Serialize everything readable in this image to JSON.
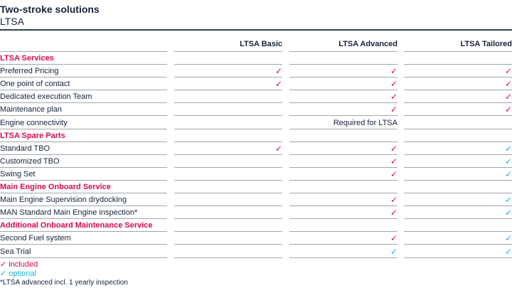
{
  "title": "Two-stroke solutions",
  "subtitle": "LTSA",
  "columns": [
    "LTSA Basic",
    "LTSA Advanced",
    "LTSA Tailored"
  ],
  "marks": {
    "included": "✓",
    "optional": "✓"
  },
  "rows": [
    {
      "type": "section",
      "label": "LTSA Services"
    },
    {
      "type": "item",
      "label": "Preferred Pricing",
      "cells": [
        "included",
        "included",
        "included"
      ]
    },
    {
      "type": "item",
      "label": "One point of contact",
      "cells": [
        "included",
        "included",
        "included"
      ]
    },
    {
      "type": "item",
      "label": "Dedicated execution Team",
      "cells": [
        "",
        "included",
        "included"
      ]
    },
    {
      "type": "item",
      "label": "Maintenance plan",
      "cells": [
        "",
        "included",
        "included"
      ]
    },
    {
      "type": "item",
      "label": "Engine connectivity",
      "cells": [
        "",
        "text:Required for LTSA",
        ""
      ]
    },
    {
      "type": "section",
      "label": "LTSA Spare Parts"
    },
    {
      "type": "item",
      "label": "Standard TBO",
      "cells": [
        "included",
        "included",
        "optional"
      ]
    },
    {
      "type": "item",
      "label": "Customized TBO",
      "cells": [
        "",
        "included",
        "optional"
      ]
    },
    {
      "type": "item",
      "label": "Swing Set",
      "cells": [
        "",
        "included",
        "optional"
      ]
    },
    {
      "type": "section",
      "label": "Main Engine Onboard Service"
    },
    {
      "type": "item",
      "label": "Main Engine Supervision drydocking",
      "cells": [
        "",
        "included",
        "optional"
      ]
    },
    {
      "type": "item",
      "label": "MAN Standard Main Engine inspection*",
      "cells": [
        "",
        "included",
        "optional"
      ]
    },
    {
      "type": "section",
      "label": "Additional Onboard Maintenance Service"
    },
    {
      "type": "item",
      "label": "Second Fuel system",
      "cells": [
        "",
        "included",
        "optional"
      ]
    },
    {
      "type": "item",
      "label": "Sea Trial",
      "cells": [
        "",
        "optional",
        "optional"
      ]
    }
  ],
  "legend": {
    "included_label": "✓ included",
    "optional_label": "✓ optional"
  },
  "footnote": "*LTSA advanced incl. 1 yearly inspection",
  "colors": {
    "included": "#d6094f",
    "optional": "#1bb3d6",
    "section": "#d6094f"
  }
}
